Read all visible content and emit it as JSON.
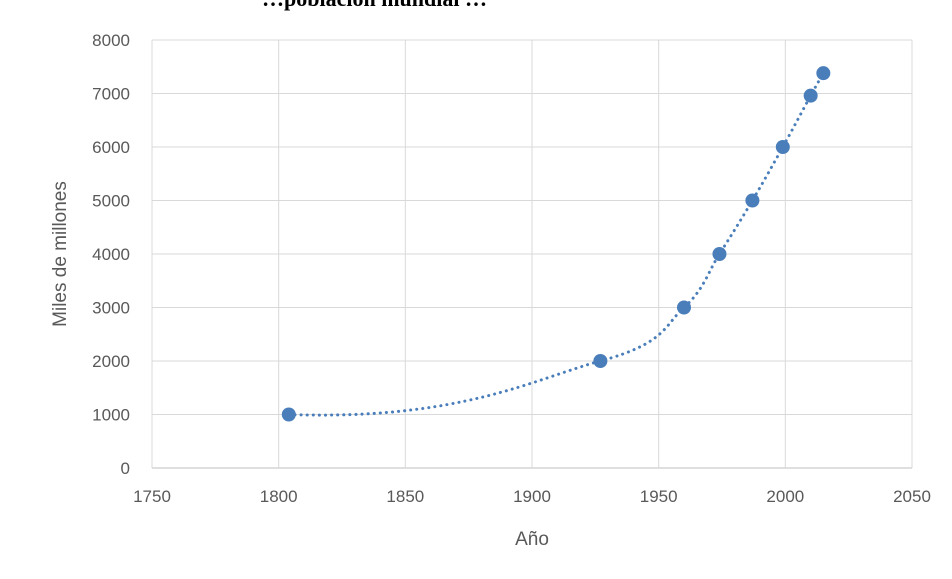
{
  "chart_data": {
    "type": "scatter",
    "title": "",
    "top_clipped_text": "…población mundial …",
    "xlabel": "Año",
    "ylabel": "Miles de millones",
    "xlim": [
      1750,
      2050
    ],
    "ylim": [
      0,
      8000
    ],
    "x_ticks": [
      1750,
      1800,
      1850,
      1900,
      1950,
      2000,
      2050
    ],
    "y_ticks": [
      0,
      1000,
      2000,
      3000,
      4000,
      5000,
      6000,
      7000,
      8000
    ],
    "grid": true,
    "legend": "none",
    "series": [
      {
        "x": [
          1804,
          1927,
          1960,
          1974,
          1987,
          1999,
          2010,
          2015
        ],
        "y": [
          1000,
          2000,
          3000,
          4000,
          5000,
          6000,
          6960,
          7380
        ],
        "trendline": "exponential, dotted"
      }
    ],
    "colors": {
      "marker": "#4a7ebb",
      "trendline": "#4a7ebb",
      "grid": "#d9d9d9",
      "axis": "#bfbfbf"
    }
  }
}
